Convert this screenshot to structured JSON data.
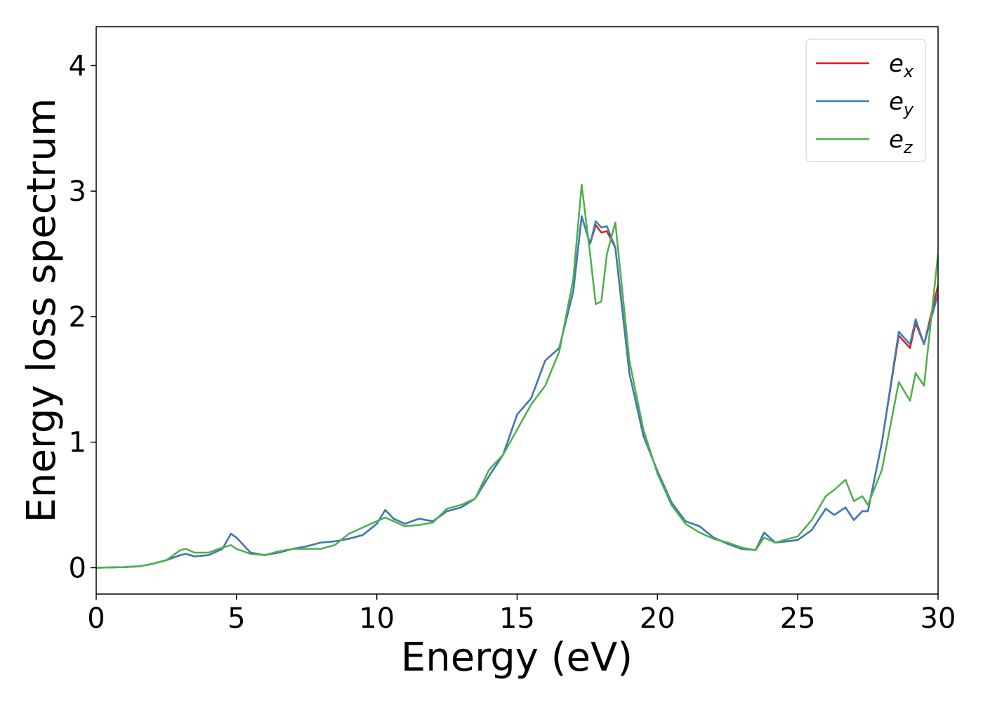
{
  "chart_data": {
    "type": "line",
    "xlabel": "Energy (eV)",
    "ylabel": "Energy loss spectrum",
    "x": [
      0,
      1,
      1.5,
      2,
      2.5,
      3,
      3.2,
      3.5,
      4,
      4.5,
      4.8,
      5,
      5.5,
      6,
      6.5,
      7,
      7.5,
      8,
      8.5,
      9,
      9.5,
      10,
      10.3,
      10.6,
      11,
      11.5,
      12,
      12.5,
      13,
      13.5,
      14,
      14.5,
      15,
      15.5,
      16,
      16.5,
      17,
      17.3,
      17.6,
      17.8,
      18,
      18.2,
      18.5,
      19,
      19.5,
      20,
      20.5,
      21,
      21.5,
      22,
      22.5,
      23,
      23.5,
      23.8,
      24.2,
      25,
      25.5,
      26,
      26.3,
      26.7,
      27,
      27.3,
      27.5,
      28,
      28.6,
      29,
      29.2,
      29.5,
      30
    ],
    "series": [
      {
        "name": "ex",
        "color": "#e41a1c",
        "values": [
          0,
          0.005,
          0.01,
          0.03,
          0.06,
          0.1,
          0.11,
          0.09,
          0.1,
          0.15,
          0.27,
          0.24,
          0.12,
          0.1,
          0.12,
          0.15,
          0.17,
          0.2,
          0.21,
          0.23,
          0.26,
          0.35,
          0.46,
          0.39,
          0.35,
          0.39,
          0.37,
          0.45,
          0.48,
          0.55,
          0.73,
          0.9,
          1.22,
          1.35,
          1.65,
          1.75,
          2.2,
          2.8,
          2.58,
          2.73,
          2.67,
          2.68,
          2.55,
          1.55,
          1.05,
          0.77,
          0.52,
          0.37,
          0.33,
          0.24,
          0.19,
          0.15,
          0.14,
          0.28,
          0.2,
          0.22,
          0.3,
          0.47,
          0.42,
          0.48,
          0.38,
          0.45,
          0.45,
          1.0,
          1.85,
          1.75,
          1.95,
          1.78,
          2.25
        ]
      },
      {
        "name": "ey",
        "color": "#377eb8",
        "values": [
          0,
          0.005,
          0.01,
          0.03,
          0.06,
          0.1,
          0.11,
          0.09,
          0.1,
          0.15,
          0.27,
          0.24,
          0.12,
          0.1,
          0.12,
          0.15,
          0.17,
          0.2,
          0.21,
          0.23,
          0.26,
          0.35,
          0.46,
          0.39,
          0.35,
          0.39,
          0.37,
          0.45,
          0.48,
          0.55,
          0.73,
          0.9,
          1.22,
          1.35,
          1.65,
          1.75,
          2.2,
          2.8,
          2.58,
          2.76,
          2.71,
          2.72,
          2.55,
          1.55,
          1.05,
          0.77,
          0.52,
          0.37,
          0.33,
          0.24,
          0.19,
          0.15,
          0.14,
          0.28,
          0.2,
          0.22,
          0.3,
          0.47,
          0.42,
          0.48,
          0.38,
          0.45,
          0.45,
          1.0,
          1.88,
          1.78,
          1.98,
          1.78,
          2.18
        ]
      },
      {
        "name": "ez",
        "color": "#4daf4a",
        "values": [
          0,
          0.005,
          0.01,
          0.03,
          0.06,
          0.14,
          0.15,
          0.12,
          0.12,
          0.16,
          0.18,
          0.15,
          0.11,
          0.1,
          0.13,
          0.15,
          0.15,
          0.15,
          0.18,
          0.27,
          0.32,
          0.37,
          0.4,
          0.37,
          0.33,
          0.34,
          0.36,
          0.47,
          0.5,
          0.55,
          0.78,
          0.9,
          1.1,
          1.3,
          1.45,
          1.72,
          2.3,
          3.05,
          2.5,
          2.1,
          2.12,
          2.5,
          2.75,
          1.65,
          1.1,
          0.75,
          0.5,
          0.35,
          0.28,
          0.23,
          0.2,
          0.16,
          0.14,
          0.24,
          0.2,
          0.25,
          0.38,
          0.57,
          0.62,
          0.7,
          0.53,
          0.57,
          0.5,
          0.78,
          1.48,
          1.33,
          1.55,
          1.45,
          2.5
        ]
      }
    ],
    "xlim": [
      0,
      30
    ],
    "xticks": [
      0,
      5,
      10,
      15,
      20,
      25,
      30
    ],
    "ylim": [
      -0.21,
      4.31
    ],
    "yticks": [
      0,
      1,
      2,
      3,
      4
    ],
    "legend": "upper right",
    "grid": false
  }
}
